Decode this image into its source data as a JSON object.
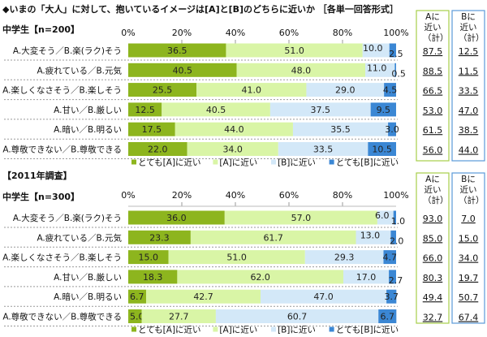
{
  "title": "◆いまの「大人」に対して、抱いているイメージは[A]と[B]のどちらに近いか ［各単一回答形式］",
  "colors": {
    "very_a": "#8db51e",
    "a": "#d9f5a6",
    "b": "#d3e8f8",
    "very_b": "#3b87d4",
    "a_box": "#a6cf4a",
    "b_box": "#5a9ad8"
  },
  "chart_data": [
    {
      "type": "bar",
      "stacked": true,
      "orientation": "horizontal",
      "section_title": "",
      "sample_label": "中学生【n=200】",
      "xticks": [
        "0%",
        "20%",
        "40%",
        "60%",
        "80%",
        "100%"
      ],
      "xlim": [
        0,
        100
      ],
      "categories": [
        "A.大変そう／B.楽(ラク)そう",
        "A.疲れている／B.元気",
        "A.楽しくなさそう／B.楽しそう",
        "A.甘い／B.厳しい",
        "A.暗い／B.明るい",
        "A.尊敬できない／B.尊敬できる"
      ],
      "series": [
        {
          "name": "とても[A]に近い",
          "values": [
            36.5,
            40.5,
            25.5,
            12.5,
            17.5,
            22.0
          ]
        },
        {
          "name": "[A]に近い",
          "values": [
            51.0,
            48.0,
            41.0,
            40.5,
            44.0,
            34.0
          ]
        },
        {
          "name": "[B]に近い",
          "values": [
            10.0,
            11.0,
            29.0,
            37.5,
            35.5,
            33.5
          ]
        },
        {
          "name": "とても[B]に近い",
          "values": [
            2.5,
            0.5,
            4.5,
            9.5,
            3.0,
            10.5
          ]
        }
      ],
      "totals_a_header": "Aに近い（計）",
      "totals_b_header": "Bに近い（計）",
      "totals_a": [
        "87.5",
        "88.5",
        "66.5",
        "53.0",
        "61.5",
        "56.0"
      ],
      "totals_b": [
        "12.5",
        "11.5",
        "33.5",
        "47.0",
        "38.5",
        "44.0"
      ],
      "legend": "bottom"
    },
    {
      "type": "bar",
      "stacked": true,
      "orientation": "horizontal",
      "section_title": "【2011年調査】",
      "sample_label": "中学生【n=300】",
      "xticks": [
        "0%",
        "20%",
        "40%",
        "60%",
        "80%",
        "100%"
      ],
      "xlim": [
        0,
        100
      ],
      "categories": [
        "A.大変そう／B.楽(ラク)そう",
        "A.疲れている／B.元気",
        "A.楽しくなさそう／B.楽しそう",
        "A.甘い／B.厳しい",
        "A.暗い／B.明るい",
        "A.尊敬できない／B.尊敬できる"
      ],
      "series": [
        {
          "name": "とても[A]に近い",
          "values": [
            36.0,
            23.3,
            15.0,
            18.3,
            6.7,
            5.0
          ]
        },
        {
          "name": "[A]に近い",
          "values": [
            57.0,
            61.7,
            51.0,
            62.0,
            42.7,
            27.7
          ]
        },
        {
          "name": "[B]に近い",
          "values": [
            6.0,
            13.0,
            29.3,
            17.0,
            47.0,
            60.7
          ]
        },
        {
          "name": "とても[B]に近い",
          "values": [
            1.0,
            2.0,
            4.7,
            2.7,
            3.7,
            6.7
          ]
        }
      ],
      "totals_a_header": "Aに近い（計）",
      "totals_b_header": "Bに近い（計）",
      "totals_a": [
        "93.0",
        "85.0",
        "66.0",
        "80.3",
        "49.4",
        "32.7"
      ],
      "totals_b": [
        "7.0",
        "15.0",
        "34.0",
        "19.7",
        "50.7",
        "67.4"
      ],
      "legend": "bottom"
    }
  ]
}
